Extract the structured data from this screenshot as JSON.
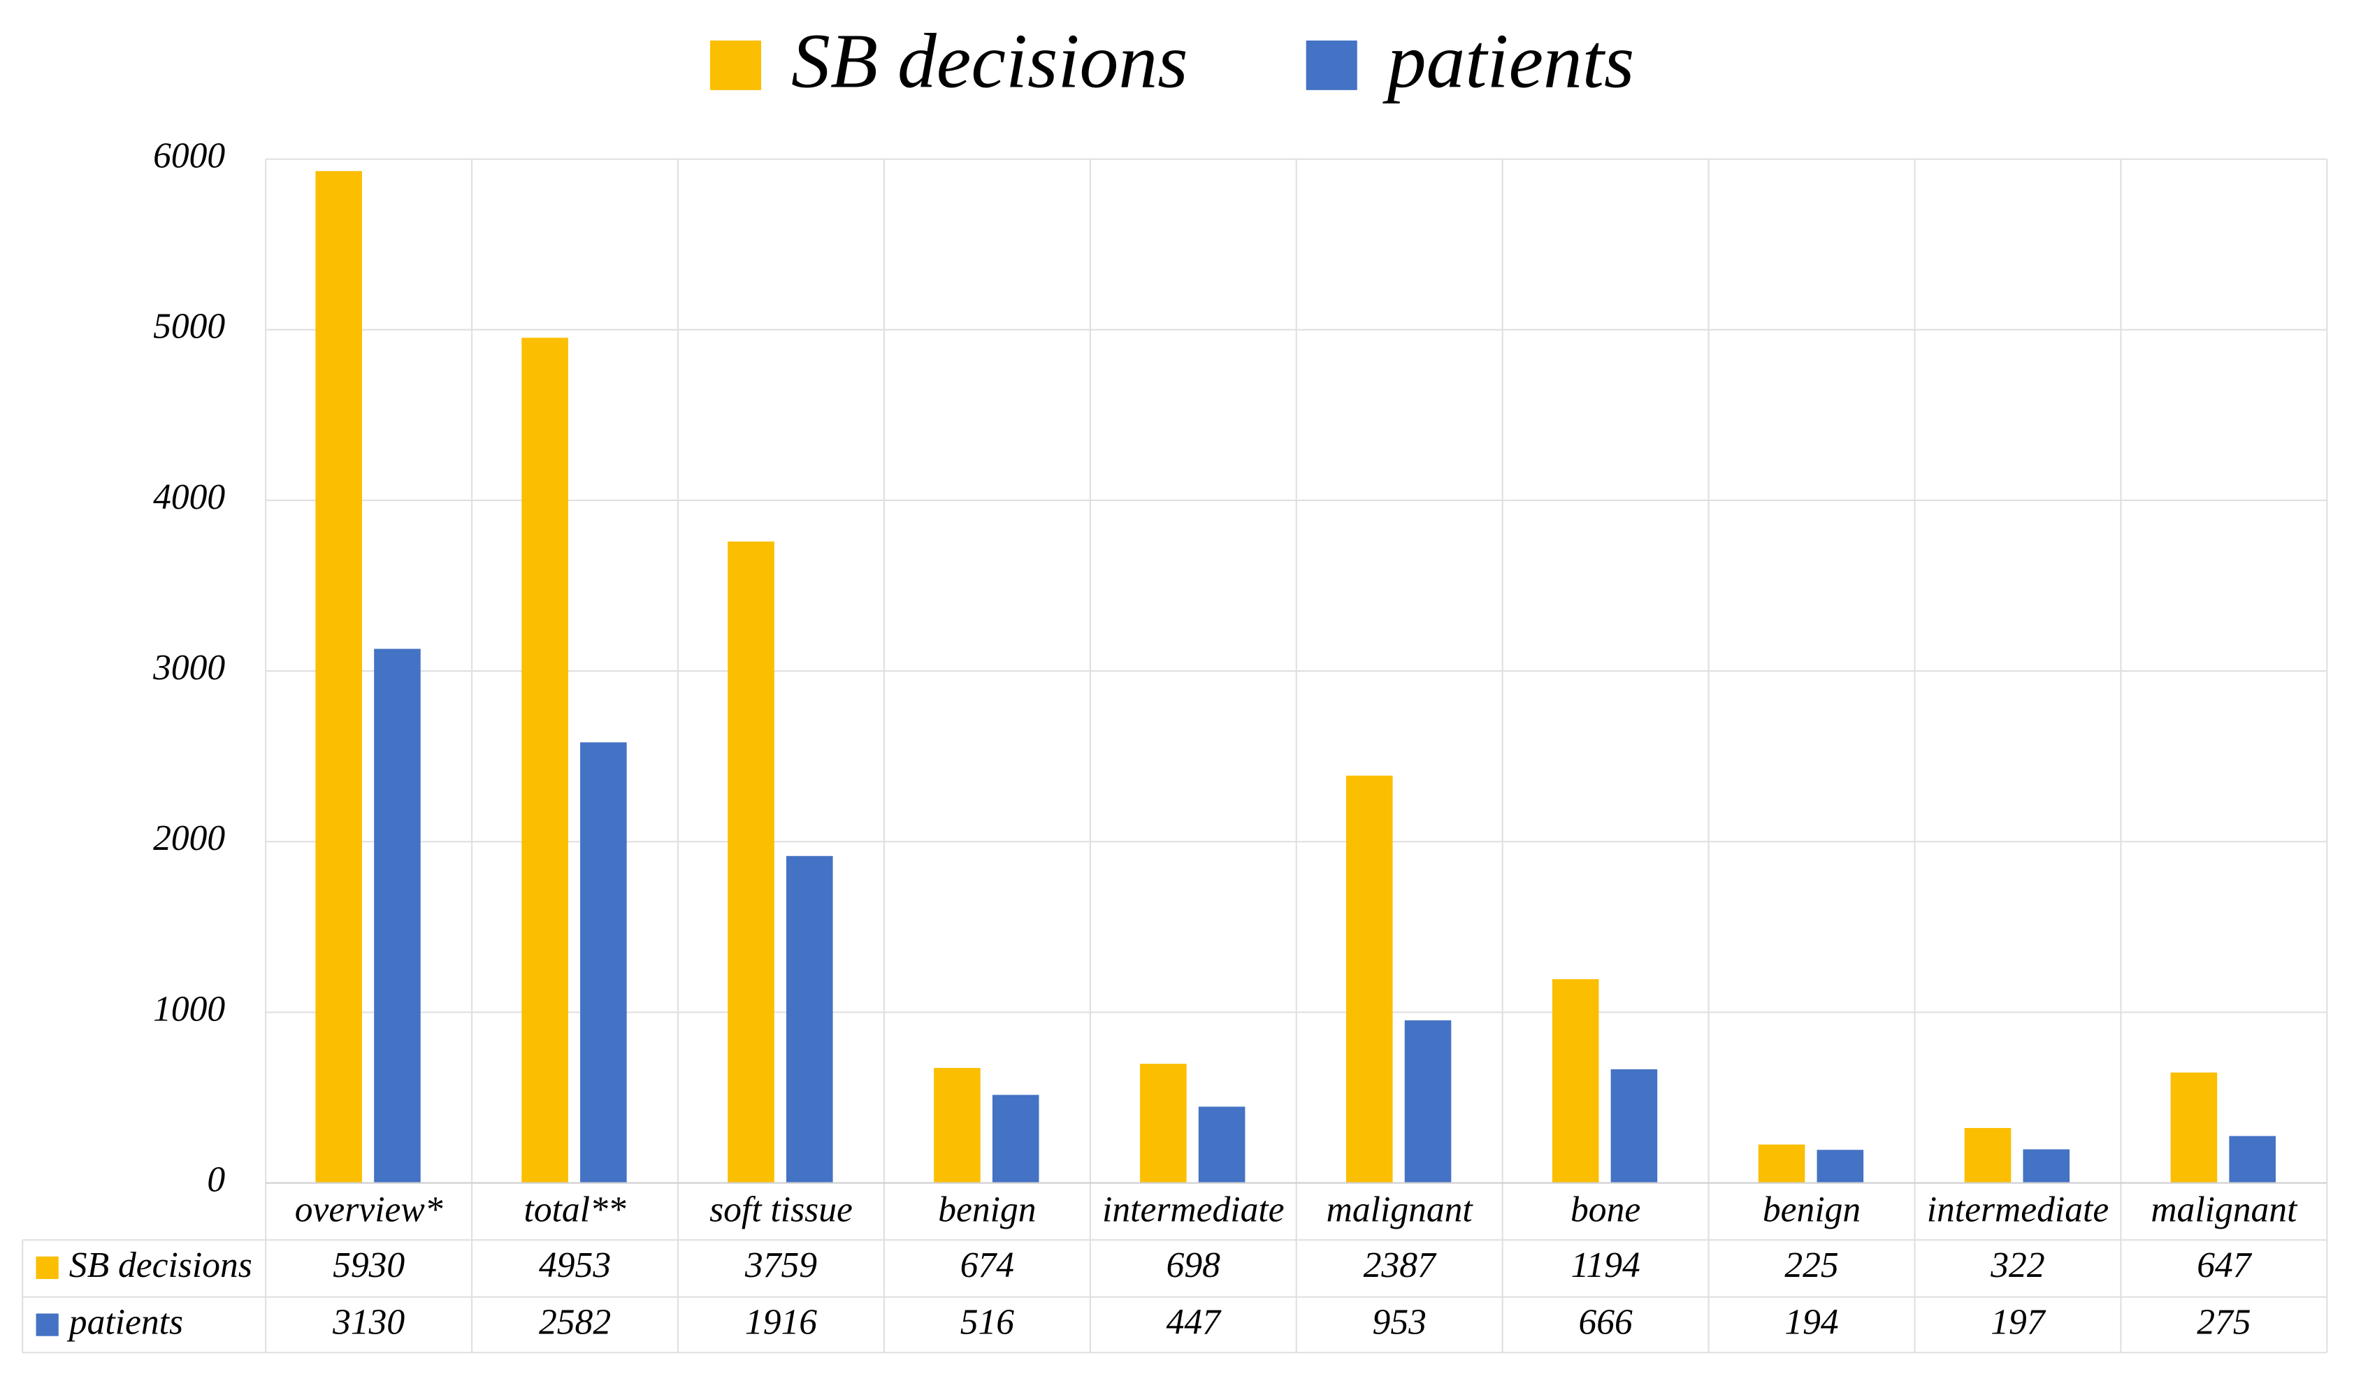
{
  "chart_data": {
    "type": "bar",
    "categories": [
      "overview*",
      "total**",
      "soft tissue",
      "benign",
      "intermediate",
      "malignant",
      "bone",
      "benign",
      "intermediate",
      "malignant"
    ],
    "series": [
      {
        "name": "SB decisions",
        "color": "#fbbe00",
        "values": [
          5930,
          4953,
          3759,
          674,
          698,
          2387,
          1194,
          225,
          322,
          647
        ]
      },
      {
        "name": "patients",
        "color": "#4472c4",
        "values": [
          3130,
          2582,
          1916,
          516,
          447,
          953,
          666,
          194,
          197,
          275
        ]
      }
    ],
    "ylim": [
      0,
      6000
    ],
    "yticks": [
      0,
      1000,
      2000,
      3000,
      4000,
      5000,
      6000
    ],
    "grid": true,
    "legend": "top",
    "data_table": true
  }
}
